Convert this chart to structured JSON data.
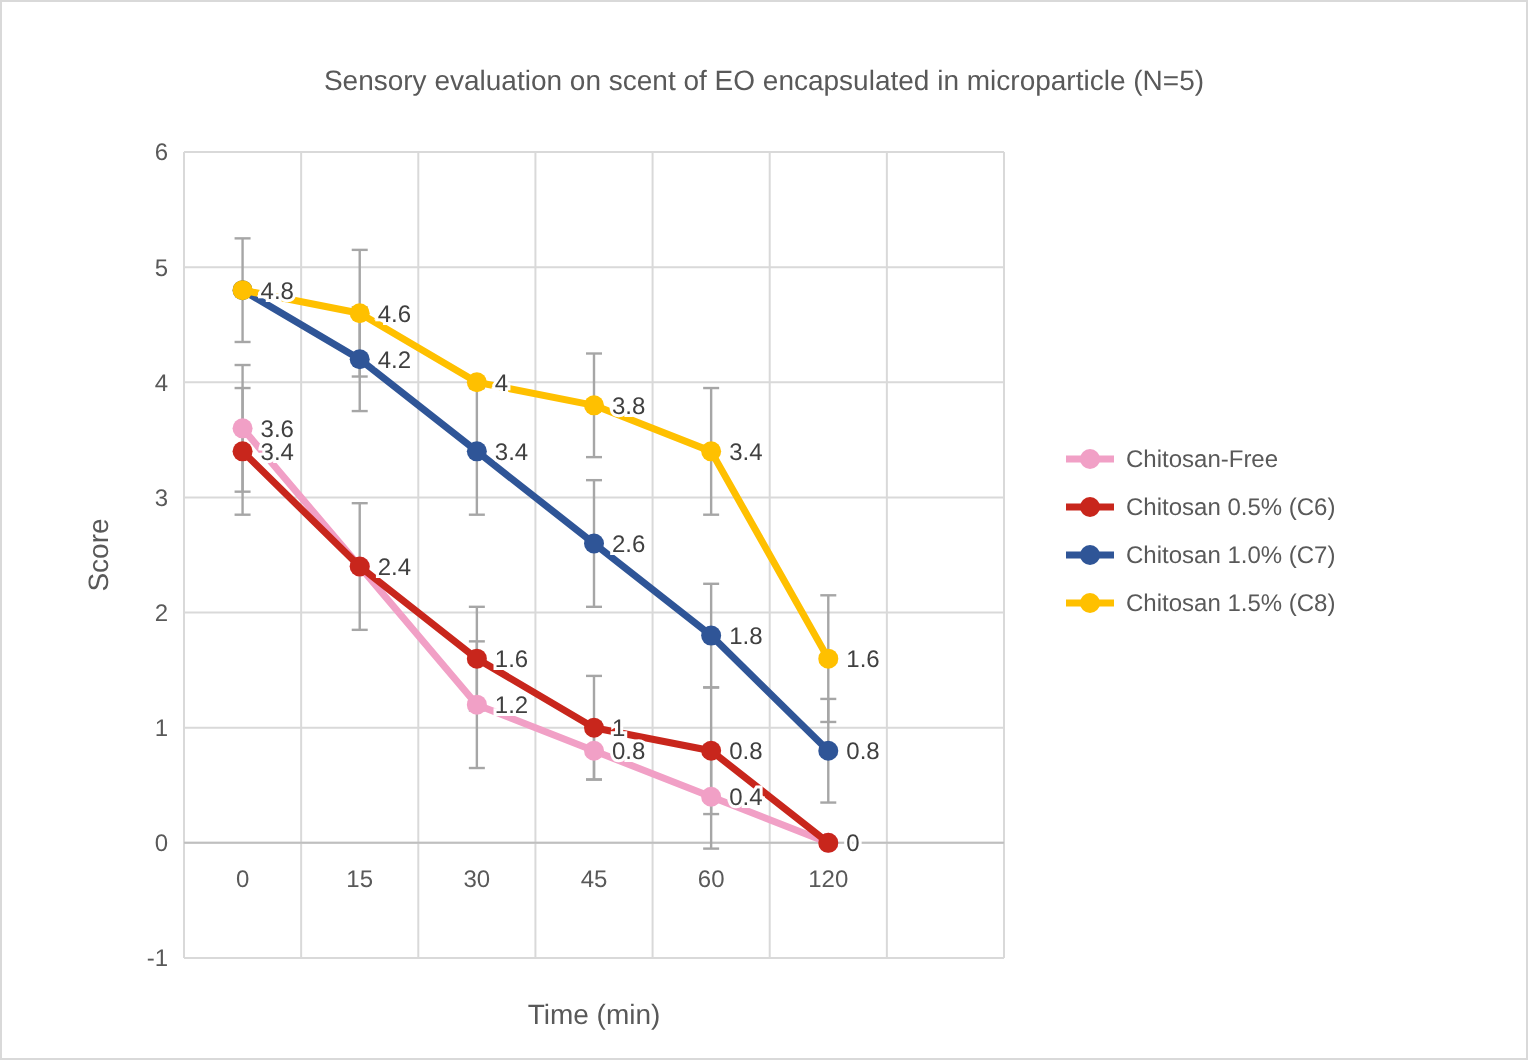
{
  "chart_data": {
    "type": "line",
    "title": "Sensory evaluation on scent of EO encapsulated in microparticle (N=5)",
    "xlabel": "Time (min)",
    "ylabel": "Score",
    "categories": [
      "0",
      "15",
      "30",
      "45",
      "60",
      "120",
      null
    ],
    "ylim": [
      -1,
      6
    ],
    "yticks": [
      -1,
      0,
      1,
      2,
      3,
      4,
      5,
      6
    ],
    "grid": true,
    "legend": "right",
    "marker": "circle",
    "line_style": "solid",
    "series": [
      {
        "name": "Chitosan-Free",
        "color": "#f1a0c6",
        "values": [
          3.6,
          2.4,
          1.2,
          0.8,
          0.4,
          0,
          null
        ],
        "errors": [
          0.55,
          null,
          0.55,
          0.25,
          0.45,
          null,
          null
        ],
        "value_labels": [
          "3.6",
          null,
          "1.2",
          "0.8",
          "0.4",
          null,
          null
        ]
      },
      {
        "name": "Chitosan 0.5% (C6)",
        "color": "#c8261c",
        "values": [
          3.4,
          2.4,
          1.6,
          1,
          0.8,
          0,
          null
        ],
        "errors": [
          0.55,
          0.55,
          0.45,
          0.45,
          0.55,
          null,
          null
        ],
        "value_labels": [
          "3.4",
          "2.4",
          "1.6",
          "1",
          "0.8",
          "0",
          null
        ]
      },
      {
        "name": "Chitosan 1.0% (C7)",
        "color": "#2f5597",
        "values": [
          4.8,
          4.2,
          3.4,
          2.6,
          1.8,
          0.8,
          null
        ],
        "errors": [
          null,
          0.45,
          0.55,
          0.55,
          0.45,
          0.45,
          null
        ],
        "value_labels": [
          null,
          "4.2",
          "3.4",
          "2.6",
          "1.8",
          "0.8",
          null
        ]
      },
      {
        "name": "Chitosan 1.5% (C8)",
        "color": "#ffc000",
        "values": [
          4.8,
          4.6,
          4,
          3.8,
          3.4,
          1.6,
          null
        ],
        "errors": [
          0.45,
          0.55,
          null,
          0.45,
          0.55,
          0.55,
          null
        ],
        "value_labels": [
          "4.8",
          "4.6",
          "4",
          "3.8",
          "3.4",
          "1.6",
          null
        ]
      }
    ]
  }
}
